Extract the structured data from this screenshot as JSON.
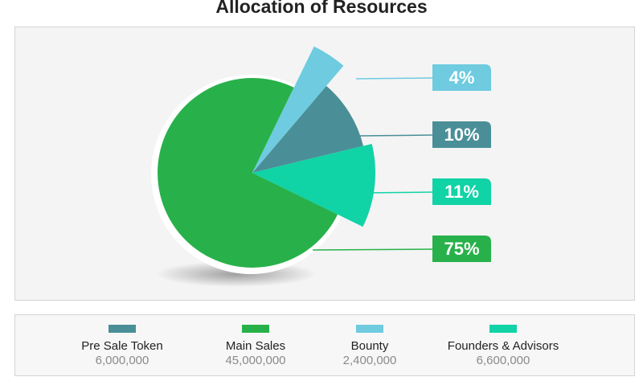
{
  "title": "Allocation of Resources",
  "chart_data": {
    "type": "pie",
    "title": "Allocation of Resources",
    "slices": [
      {
        "name": "Pre Sale Token",
        "label": "10%",
        "value": 10,
        "amount": "6,000,000",
        "color": "#4a8f97"
      },
      {
        "name": "Main Sales",
        "label": "75%",
        "value": 75,
        "amount": "45,000,000",
        "color": "#28b14a"
      },
      {
        "name": "Bounty",
        "label": "4%",
        "value": 4,
        "amount": "2,400,000",
        "color": "#6ecbe0"
      },
      {
        "name": "Founders & Advisors",
        "label": "11%",
        "value": 11,
        "amount": "6,600,000",
        "color": "#10d3a6"
      }
    ],
    "legend_position": "bottom"
  }
}
